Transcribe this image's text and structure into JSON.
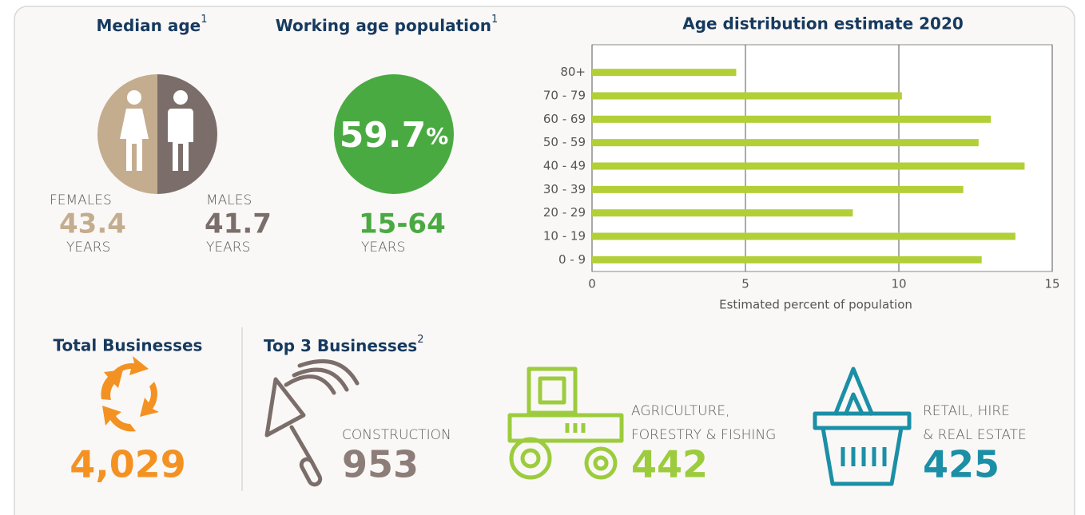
{
  "median_age": {
    "title": "Median age",
    "note": "1",
    "females": {
      "label": "FEMALES",
      "value": 43.4,
      "unit": "YEARS"
    },
    "males": {
      "label": "MALES",
      "value": 41.7,
      "unit": "YEARS"
    }
  },
  "working_age": {
    "title": "Working age population",
    "note": "1",
    "value": 59.7,
    "percent_sign": "%",
    "range": "15-64",
    "unit": "YEARS"
  },
  "chart_data": {
    "type": "hbar",
    "title": "Age distribution estimate 2020",
    "categories": [
      "80+",
      "70 - 79",
      "60 - 69",
      "50 - 59",
      "40 - 49",
      "30 - 39",
      "20 - 29",
      "10 - 19",
      "0 - 9"
    ],
    "values": [
      4.7,
      10.1,
      13.0,
      12.6,
      14.1,
      12.1,
      8.5,
      13.8,
      12.7
    ],
    "color": "#b2cf38",
    "xlim": [
      0,
      15
    ],
    "xticks": [
      0,
      5,
      10,
      15
    ],
    "xlabel": "Estimated percent of population",
    "grid": true
  },
  "total_businesses": {
    "title": "Total Businesses",
    "value": "4,029"
  },
  "top_businesses": {
    "title": "Top 3 Businesses",
    "note": "2",
    "items": [
      {
        "lines": [
          "CONSTRUCTION"
        ],
        "value": 953
      },
      {
        "lines": [
          "AGRICULTURE,",
          "FORESTRY & FISHING"
        ],
        "value": 442
      },
      {
        "lines": [
          "RETAIL, HIRE",
          "& REAL ESTATE"
        ],
        "value": 425
      }
    ]
  }
}
